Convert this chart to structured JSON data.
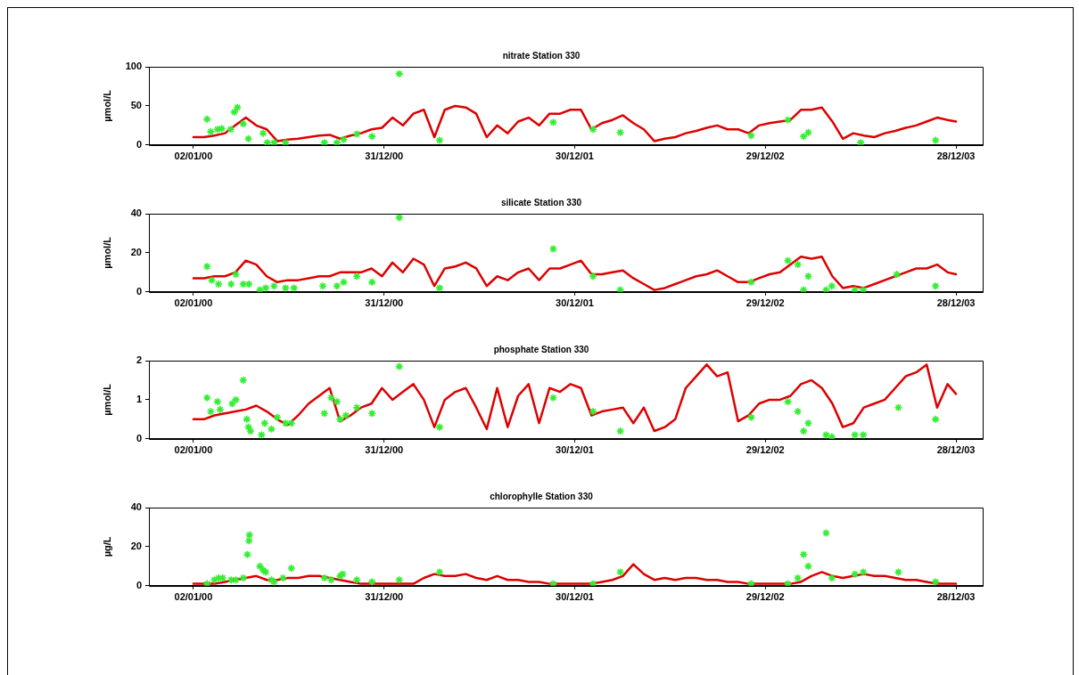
{
  "chart_data": [
    {
      "type": "line",
      "title": "nitrate Station 330",
      "ylabel": "µmol/L",
      "xlim": [
        "1999-10-09",
        "2004-02-17"
      ],
      "ylim": [
        0,
        100
      ],
      "yticks": [
        0,
        50,
        100
      ],
      "xticks": [
        {
          "value": "2000-01-02",
          "label": "02/01/00"
        },
        {
          "value": "2000-12-31",
          "label": "31/12/00"
        },
        {
          "value": "2001-12-30",
          "label": "30/12/01"
        },
        {
          "value": "2002-12-29",
          "label": "29/12/02"
        },
        {
          "value": "2003-12-28",
          "label": "28/12/03"
        }
      ],
      "x": [
        "2000-01-02",
        "2000-01-22",
        "2000-02-11",
        "2000-03-02",
        "2000-03-22",
        "2000-04-11",
        "2000-05-01",
        "2000-05-21",
        "2000-06-10",
        "2000-06-30",
        "2000-07-20",
        "2000-08-09",
        "2000-08-29",
        "2000-09-18",
        "2000-10-08",
        "2000-10-28",
        "2000-11-17",
        "2000-12-07",
        "2000-12-27",
        "2001-01-16",
        "2001-02-05",
        "2001-02-25",
        "2001-03-17",
        "2001-04-06",
        "2001-04-26",
        "2001-05-16",
        "2001-06-05",
        "2001-06-25",
        "2001-07-15",
        "2001-08-04",
        "2001-08-24",
        "2001-09-13",
        "2001-10-03",
        "2001-10-23",
        "2001-11-12",
        "2001-12-02",
        "2001-12-22",
        "2002-01-11",
        "2002-01-31",
        "2002-02-20",
        "2002-03-12",
        "2002-04-01",
        "2002-04-21",
        "2002-05-11",
        "2002-05-31",
        "2002-06-20",
        "2002-07-10",
        "2002-07-30",
        "2002-08-19",
        "2002-09-08",
        "2002-09-28",
        "2002-10-18",
        "2002-11-07",
        "2002-11-27",
        "2002-12-17",
        "2003-01-06",
        "2003-01-26",
        "2003-02-15",
        "2003-03-07",
        "2003-03-27",
        "2003-04-16",
        "2003-05-06",
        "2003-05-26",
        "2003-06-15",
        "2003-07-05",
        "2003-07-25",
        "2003-08-14",
        "2003-09-03",
        "2003-09-23",
        "2003-10-13",
        "2003-11-02",
        "2003-11-22",
        "2003-12-12",
        "2003-12-28"
      ],
      "marker": "none",
      "line_style": "solid",
      "series": [
        {
          "type": "line",
          "color": "#dd0000",
          "values": [
            10,
            10,
            12,
            15,
            25,
            35,
            25,
            20,
            5,
            7,
            8,
            10,
            12,
            13,
            8,
            12,
            15,
            20,
            22,
            35,
            25,
            40,
            45,
            10,
            45,
            50,
            48,
            40,
            10,
            25,
            15,
            30,
            35,
            25,
            40,
            40,
            45,
            45,
            20,
            28,
            32,
            38,
            28,
            20,
            5,
            8,
            10,
            15,
            18,
            22,
            25,
            20,
            20,
            15,
            25,
            28,
            30,
            32,
            45,
            45,
            48,
            30,
            8,
            15,
            12,
            10,
            15,
            18,
            22,
            25,
            30,
            35,
            32,
            30
          ]
        },
        {
          "type": "scatter",
          "color": "#33ee33",
          "marker": "cross",
          "x": [
            "2000-01-28",
            "2000-02-04",
            "2000-02-17",
            "2000-02-25",
            "2000-03-13",
            "2000-03-20",
            "2000-03-26",
            "2000-04-06",
            "2000-04-16",
            "2000-05-14",
            "2000-05-22",
            "2000-06-04",
            "2000-06-26",
            "2000-09-08",
            "2000-10-02",
            "2000-10-15",
            "2000-11-09",
            "2000-12-08",
            "2001-01-29",
            "2001-04-16",
            "2001-11-19",
            "2002-02-03",
            "2002-03-27",
            "2002-12-02",
            "2003-02-10",
            "2003-03-12",
            "2003-03-21",
            "2003-06-29",
            "2003-11-19"
          ],
          "values": [
            33,
            17,
            20,
            21,
            20,
            42,
            48,
            27,
            8,
            15,
            3,
            3,
            3,
            3,
            3,
            7,
            14,
            11,
            91,
            6,
            29,
            20,
            16,
            12,
            32,
            11,
            16,
            3,
            6
          ]
        }
      ]
    },
    {
      "type": "line",
      "title": "silicate Station 330",
      "ylabel": "µmol/L",
      "xlim": [
        "1999-10-09",
        "2004-02-17"
      ],
      "ylim": [
        0,
        40
      ],
      "yticks": [
        0,
        20,
        40
      ],
      "xticks": [
        {
          "value": "2000-01-02",
          "label": "02/01/00"
        },
        {
          "value": "2000-12-31",
          "label": "31/12/00"
        },
        {
          "value": "2001-12-30",
          "label": "30/12/01"
        },
        {
          "value": "2002-12-29",
          "label": "29/12/02"
        },
        {
          "value": "2003-12-28",
          "label": "28/12/03"
        }
      ],
      "x": [
        "2000-01-02",
        "2000-01-22",
        "2000-02-11",
        "2000-03-02",
        "2000-03-22",
        "2000-04-11",
        "2000-05-01",
        "2000-05-21",
        "2000-06-10",
        "2000-06-30",
        "2000-07-20",
        "2000-08-09",
        "2000-08-29",
        "2000-09-18",
        "2000-10-08",
        "2000-10-28",
        "2000-11-17",
        "2000-12-07",
        "2000-12-27",
        "2001-01-16",
        "2001-02-05",
        "2001-02-25",
        "2001-03-17",
        "2001-04-06",
        "2001-04-26",
        "2001-05-16",
        "2001-06-05",
        "2001-06-25",
        "2001-07-15",
        "2001-08-04",
        "2001-08-24",
        "2001-09-13",
        "2001-10-03",
        "2001-10-23",
        "2001-11-12",
        "2001-12-02",
        "2001-12-22",
        "2002-01-11",
        "2002-01-31",
        "2002-02-20",
        "2002-03-12",
        "2002-04-01",
        "2002-04-21",
        "2002-05-11",
        "2002-05-31",
        "2002-06-20",
        "2002-07-10",
        "2002-07-30",
        "2002-08-19",
        "2002-09-08",
        "2002-09-28",
        "2002-10-18",
        "2002-11-07",
        "2002-11-27",
        "2002-12-17",
        "2003-01-06",
        "2003-01-26",
        "2003-02-15",
        "2003-03-07",
        "2003-03-27",
        "2003-04-16",
        "2003-05-06",
        "2003-05-26",
        "2003-06-15",
        "2003-07-05",
        "2003-07-25",
        "2003-08-14",
        "2003-09-03",
        "2003-09-23",
        "2003-10-13",
        "2003-11-02",
        "2003-11-22",
        "2003-12-12",
        "2003-12-28"
      ],
      "marker": "none",
      "line_style": "solid",
      "series": [
        {
          "type": "line",
          "color": "#dd0000",
          "values": [
            7,
            7,
            8,
            8,
            10,
            16,
            14,
            8,
            5,
            6,
            6,
            7,
            8,
            8,
            10,
            10,
            10,
            12,
            8,
            15,
            10,
            17,
            14,
            3,
            12,
            13,
            15,
            12,
            3,
            8,
            6,
            10,
            12,
            6,
            12,
            12,
            14,
            16,
            9,
            9,
            10,
            11,
            7,
            4,
            1,
            2,
            4,
            6,
            8,
            9,
            11,
            8,
            5,
            5,
            7,
            9,
            10,
            14,
            18,
            17,
            18,
            8,
            2,
            3,
            2,
            4,
            6,
            8,
            10,
            12,
            12,
            14,
            10,
            9
          ]
        },
        {
          "type": "scatter",
          "color": "#33ee33",
          "marker": "cross",
          "x": [
            "2000-01-28",
            "2000-02-06",
            "2000-02-19",
            "2000-03-14",
            "2000-03-23",
            "2000-04-06",
            "2000-04-17",
            "2000-05-08",
            "2000-05-19",
            "2000-06-04",
            "2000-06-26",
            "2000-07-12",
            "2000-09-05",
            "2000-10-02",
            "2000-10-15",
            "2000-11-09",
            "2000-12-08",
            "2001-01-29",
            "2001-04-16",
            "2001-11-19",
            "2002-02-03",
            "2002-03-27",
            "2002-12-02",
            "2003-02-10",
            "2003-03-01",
            "2003-03-12",
            "2003-03-21",
            "2003-04-24",
            "2003-05-05",
            "2003-06-18",
            "2003-07-04",
            "2003-09-06",
            "2003-11-19"
          ],
          "values": [
            13,
            6,
            4,
            4,
            9,
            4,
            4,
            1,
            2,
            3,
            2,
            2,
            3,
            3,
            5,
            8,
            5,
            38,
            2,
            22,
            8,
            1,
            5,
            16,
            14,
            1,
            8,
            1,
            3,
            1,
            1,
            9,
            3
          ]
        }
      ]
    },
    {
      "type": "line",
      "title": "phosphate Station 330",
      "ylabel": "µmol/L",
      "xlim": [
        "1999-10-09",
        "2004-02-17"
      ],
      "ylim": [
        0,
        2
      ],
      "yticks": [
        0,
        1,
        2
      ],
      "xticks": [
        {
          "value": "2000-01-02",
          "label": "02/01/00"
        },
        {
          "value": "2000-12-31",
          "label": "31/12/00"
        },
        {
          "value": "2001-12-30",
          "label": "30/12/01"
        },
        {
          "value": "2002-12-29",
          "label": "29/12/02"
        },
        {
          "value": "2003-12-28",
          "label": "28/12/03"
        }
      ],
      "x": [
        "2000-01-02",
        "2000-01-22",
        "2000-02-11",
        "2000-03-02",
        "2000-03-22",
        "2000-04-11",
        "2000-05-01",
        "2000-05-21",
        "2000-06-10",
        "2000-06-30",
        "2000-07-20",
        "2000-08-09",
        "2000-08-29",
        "2000-09-18",
        "2000-10-08",
        "2000-10-28",
        "2000-11-17",
        "2000-12-07",
        "2000-12-27",
        "2001-01-16",
        "2001-02-05",
        "2001-02-25",
        "2001-03-17",
        "2001-04-06",
        "2001-04-26",
        "2001-05-16",
        "2001-06-05",
        "2001-06-25",
        "2001-07-15",
        "2001-08-04",
        "2001-08-24",
        "2001-09-13",
        "2001-10-03",
        "2001-10-23",
        "2001-11-12",
        "2001-12-02",
        "2001-12-22",
        "2002-01-11",
        "2002-01-31",
        "2002-02-20",
        "2002-03-12",
        "2002-04-01",
        "2002-04-21",
        "2002-05-11",
        "2002-05-31",
        "2002-06-20",
        "2002-07-10",
        "2002-07-30",
        "2002-08-19",
        "2002-09-08",
        "2002-09-28",
        "2002-10-18",
        "2002-11-07",
        "2002-11-27",
        "2002-12-17",
        "2003-01-06",
        "2003-01-26",
        "2003-02-15",
        "2003-03-07",
        "2003-03-27",
        "2003-04-16",
        "2003-05-06",
        "2003-05-26",
        "2003-06-15",
        "2003-07-05",
        "2003-07-25",
        "2003-08-14",
        "2003-09-03",
        "2003-09-23",
        "2003-10-13",
        "2003-11-02",
        "2003-11-22",
        "2003-12-12",
        "2003-12-28"
      ],
      "marker": "none",
      "line_style": "solid",
      "series": [
        {
          "type": "line",
          "color": "#dd0000",
          "values": [
            0.5,
            0.5,
            0.6,
            0.65,
            0.7,
            0.75,
            0.85,
            0.7,
            0.5,
            0.35,
            0.6,
            0.9,
            1.1,
            1.3,
            0.45,
            0.6,
            0.8,
            0.9,
            1.3,
            1.0,
            1.2,
            1.4,
            1.0,
            0.3,
            1.0,
            1.2,
            1.3,
            0.8,
            0.25,
            1.3,
            0.3,
            1.1,
            1.4,
            0.4,
            1.3,
            1.2,
            1.4,
            1.3,
            0.6,
            0.7,
            0.75,
            0.8,
            0.4,
            0.8,
            0.2,
            0.3,
            0.5,
            1.3,
            1.6,
            1.9,
            1.6,
            1.7,
            0.45,
            0.6,
            0.9,
            1.0,
            1.0,
            1.1,
            1.4,
            1.5,
            1.3,
            0.9,
            0.3,
            0.4,
            0.8,
            0.9,
            1.0,
            1.3,
            1.6,
            1.7,
            1.9,
            0.8,
            1.4,
            1.15
          ]
        },
        {
          "type": "scatter",
          "color": "#33ee33",
          "marker": "cross",
          "x": [
            "2000-01-28",
            "2000-02-04",
            "2000-02-17",
            "2000-02-22",
            "2000-03-16",
            "2000-03-23",
            "2000-04-06",
            "2000-04-13",
            "2000-04-16",
            "2000-04-20",
            "2000-05-11",
            "2000-05-17",
            "2000-05-30",
            "2000-06-10",
            "2000-06-26",
            "2000-07-07",
            "2000-09-08",
            "2000-09-21",
            "2000-10-02",
            "2000-10-08",
            "2000-10-19",
            "2000-11-09",
            "2000-12-08",
            "2001-01-29",
            "2001-04-16",
            "2001-11-19",
            "2002-02-03",
            "2002-03-27",
            "2002-12-02",
            "2003-02-10",
            "2003-03-01",
            "2003-03-12",
            "2003-03-21",
            "2003-04-24",
            "2003-05-05",
            "2003-06-18",
            "2003-07-04",
            "2003-09-09",
            "2003-11-19"
          ],
          "values": [
            1.05,
            0.7,
            0.95,
            0.75,
            0.9,
            1.0,
            1.5,
            0.5,
            0.3,
            0.2,
            0.1,
            0.4,
            0.25,
            0.55,
            0.4,
            0.4,
            0.65,
            1.05,
            0.95,
            0.5,
            0.6,
            0.8,
            0.65,
            1.85,
            0.3,
            1.05,
            0.7,
            0.2,
            0.55,
            0.95,
            0.7,
            0.2,
            0.4,
            0.1,
            0.05,
            0.1,
            0.1,
            0.8,
            0.5
          ]
        }
      ]
    },
    {
      "type": "line",
      "title": "chlorophylle Station 330",
      "ylabel": "µg/L",
      "xlim": [
        "1999-10-09",
        "2004-02-17"
      ],
      "ylim": [
        0,
        40
      ],
      "yticks": [
        0,
        20,
        40
      ],
      "xticks": [
        {
          "value": "2000-01-02",
          "label": "02/01/00"
        },
        {
          "value": "2000-12-31",
          "label": "31/12/00"
        },
        {
          "value": "2001-12-30",
          "label": "30/12/01"
        },
        {
          "value": "2002-12-29",
          "label": "29/12/02"
        },
        {
          "value": "2003-12-28",
          "label": "28/12/03"
        }
      ],
      "x": [
        "2000-01-02",
        "2000-01-22",
        "2000-02-11",
        "2000-03-02",
        "2000-03-22",
        "2000-04-11",
        "2000-05-01",
        "2000-05-21",
        "2000-06-10",
        "2000-06-30",
        "2000-07-20",
        "2000-08-09",
        "2000-08-29",
        "2000-09-18",
        "2000-10-08",
        "2000-10-28",
        "2000-11-17",
        "2000-12-07",
        "2000-12-27",
        "2001-01-16",
        "2001-02-05",
        "2001-02-25",
        "2001-03-17",
        "2001-04-06",
        "2001-04-26",
        "2001-05-16",
        "2001-06-05",
        "2001-06-25",
        "2001-07-15",
        "2001-08-04",
        "2001-08-24",
        "2001-09-13",
        "2001-10-03",
        "2001-10-23",
        "2001-11-12",
        "2001-12-02",
        "2001-12-22",
        "2002-01-11",
        "2002-01-31",
        "2002-02-20",
        "2002-03-12",
        "2002-04-01",
        "2002-04-21",
        "2002-05-11",
        "2002-05-31",
        "2002-06-20",
        "2002-07-10",
        "2002-07-30",
        "2002-08-19",
        "2002-09-08",
        "2002-09-28",
        "2002-10-18",
        "2002-11-07",
        "2002-11-27",
        "2002-12-17",
        "2003-01-06",
        "2003-01-26",
        "2003-02-15",
        "2003-03-07",
        "2003-03-27",
        "2003-04-16",
        "2003-05-06",
        "2003-05-26",
        "2003-06-15",
        "2003-07-05",
        "2003-07-25",
        "2003-08-14",
        "2003-09-03",
        "2003-09-23",
        "2003-10-13",
        "2003-11-02",
        "2003-11-22",
        "2003-12-12",
        "2003-12-28"
      ],
      "marker": "none",
      "line_style": "solid",
      "series": [
        {
          "type": "line",
          "color": "#dd0000",
          "values": [
            1,
            1,
            1,
            2,
            3,
            4,
            5,
            3,
            3,
            4,
            4,
            5,
            5,
            4,
            3,
            2,
            1,
            1,
            1,
            1,
            1,
            1,
            4,
            6,
            5,
            5,
            6,
            4,
            3,
            5,
            3,
            3,
            2,
            2,
            1,
            1,
            1,
            1,
            1,
            2,
            3,
            5,
            11,
            6,
            3,
            4,
            3,
            4,
            4,
            3,
            3,
            2,
            2,
            1,
            1,
            1,
            1,
            1,
            2,
            5,
            7,
            5,
            4,
            5,
            6,
            5,
            5,
            4,
            3,
            3,
            2,
            1,
            1,
            1
          ]
        },
        {
          "type": "scatter",
          "color": "#33ee33",
          "marker": "cross",
          "x": [
            "2000-01-28",
            "2000-02-11",
            "2000-02-19",
            "2000-02-27",
            "2000-03-14",
            "2000-03-23",
            "2000-04-06",
            "2000-04-14",
            "2000-04-17",
            "2000-04-18",
            "2000-05-08",
            "2000-05-14",
            "2000-05-19",
            "2000-05-30",
            "2000-06-04",
            "2000-06-21",
            "2000-07-07",
            "2000-09-08",
            "2000-09-21",
            "2000-10-08",
            "2000-10-13",
            "2000-11-09",
            "2000-12-08",
            "2001-01-29",
            "2001-04-16",
            "2001-11-19",
            "2002-02-03",
            "2002-03-27",
            "2002-12-02",
            "2003-02-10",
            "2003-03-01",
            "2003-03-12",
            "2003-03-21",
            "2003-04-24",
            "2003-05-05",
            "2003-06-18",
            "2003-07-04",
            "2003-09-09",
            "2003-11-19"
          ],
          "values": [
            1,
            3,
            4,
            4,
            3,
            3,
            4,
            16,
            23,
            26,
            10,
            8,
            7,
            3,
            2,
            4,
            9,
            4,
            3,
            5,
            6,
            3,
            2,
            3,
            7,
            1,
            1,
            7,
            1,
            1,
            4,
            16,
            10,
            27,
            4,
            6,
            7,
            7,
            2
          ]
        }
      ]
    }
  ]
}
